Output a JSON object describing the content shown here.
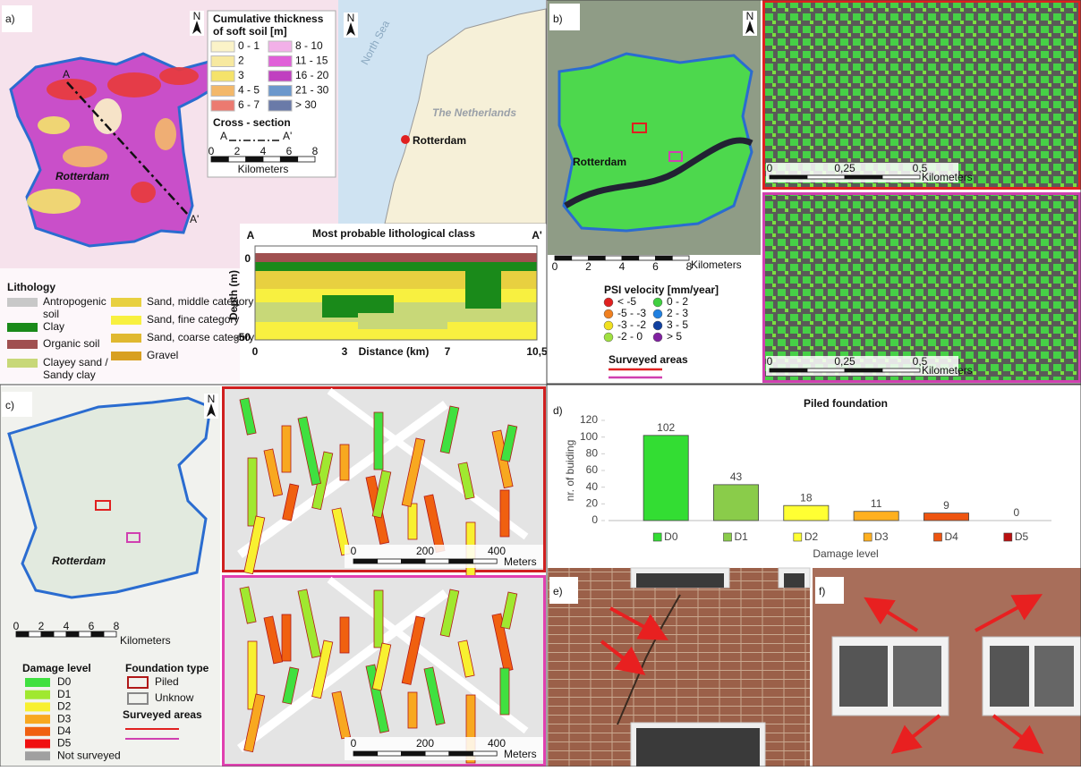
{
  "panel_a": {
    "label": "a)",
    "north": "N",
    "legend_title_1": "Cumulative thickness",
    "legend_title_2": "of soft soil [m]",
    "thickness_classes": [
      {
        "label": "0 - 1",
        "color": "#fbf3c8"
      },
      {
        "label": "2",
        "color": "#f7e9a0"
      },
      {
        "label": "3",
        "color": "#f5e36a"
      },
      {
        "label": "4 - 5",
        "color": "#f3b86a"
      },
      {
        "label": "6 - 7",
        "color": "#ec7a70"
      },
      {
        "label": "8 - 10",
        "color": "#f2b0e8"
      },
      {
        "label": "11 - 15",
        "color": "#e060d8"
      },
      {
        "label": "16 - 20",
        "color": "#c040c0"
      },
      {
        "label": "21 - 30",
        "color": "#6c98cc"
      },
      {
        "label": "> 30",
        "color": "#6a7aa8"
      }
    ],
    "cross_section_title": "Cross - section",
    "cross_section_from": "A",
    "cross_section_to": "A'",
    "scale_ticks": [
      0,
      2,
      4,
      6,
      8
    ],
    "scale_unit": "Kilometers",
    "city": "Rotterdam",
    "section_start": "A",
    "section_end": "A'",
    "inset": {
      "north": "N",
      "sea": "North Sea",
      "country": "The Netherlands",
      "city": "Rotterdam"
    },
    "profile": {
      "title": "Most probable lithological class",
      "start": "A",
      "end": "A'",
      "y_label": "Depth (m)",
      "y_ticks": [
        0,
        -50
      ],
      "x_label": "Distance (km)",
      "x_ticks": [
        "0",
        "3",
        "7",
        "10,5"
      ]
    },
    "lithology_title": "Lithology",
    "lithology": [
      {
        "lines": [
          "Antropogenic",
          "soil"
        ],
        "color": "#c8c8c8"
      },
      {
        "lines": [
          "Clay"
        ],
        "color": "#1a8a1a"
      },
      {
        "lines": [
          "Organic soil"
        ],
        "color": "#a05050"
      },
      {
        "lines": [
          "Clayey sand /",
          "Sandy clay"
        ],
        "color": "#c8d878"
      },
      {
        "lines": [
          "Sand, middle category"
        ],
        "color": "#e8d040"
      },
      {
        "lines": [
          "Sand, fine category"
        ],
        "color": "#f8f040"
      },
      {
        "lines": [
          "Sand, coarse category"
        ],
        "color": "#e0b830"
      },
      {
        "lines": [
          "Gravel"
        ],
        "color": "#d8a020"
      }
    ]
  },
  "panel_b": {
    "label": "b)",
    "north": "N",
    "city": "Rotterdam",
    "scale_ticks": [
      0,
      2,
      4,
      6,
      8
    ],
    "scale_unit": "Kilometers",
    "inset_scale_ticks": [
      "0",
      "0,25",
      "0,5"
    ],
    "inset_scale_unit": "Kilometers",
    "psi_title": "PSI velocity [mm/year]",
    "psi_classes": [
      {
        "label": "< -5",
        "color": "#e02020"
      },
      {
        "label": "-5 - -3",
        "color": "#f08020"
      },
      {
        "label": "-3 - -2",
        "color": "#f0e020"
      },
      {
        "label": "-2 - 0",
        "color": "#a0e040"
      },
      {
        "label": "0 - 2",
        "color": "#40d040"
      },
      {
        "label": "2 - 3",
        "color": "#2080e0"
      },
      {
        "label": "3 - 5",
        "color": "#1040a0"
      },
      {
        "label": "> 5",
        "color": "#8020a0"
      }
    ],
    "surveyed": "Surveyed areas"
  },
  "panel_c": {
    "label": "c)",
    "north": "N",
    "city": "Rotterdam",
    "scale_ticks": [
      0,
      2,
      4,
      6,
      8
    ],
    "scale_unit": "Kilometers",
    "inset_scale_ticks": [
      0,
      200,
      400
    ],
    "inset_scale_unit": "Meters",
    "damage_title": "Damage level",
    "damage_classes": [
      {
        "label": "D0",
        "color": "#40e040"
      },
      {
        "label": "D1",
        "color": "#a0e830"
      },
      {
        "label": "D2",
        "color": "#f8f030"
      },
      {
        "label": "D3",
        "color": "#f8a820"
      },
      {
        "label": "D4",
        "color": "#f06010"
      },
      {
        "label": "D5",
        "color": "#f01010"
      },
      {
        "label": "Not surveyed",
        "color": "#a0a0a0"
      }
    ],
    "foundation_title": "Foundation type",
    "foundation_types": [
      "Piled",
      "Unknow"
    ],
    "surveyed": "Surveyed areas"
  },
  "chart_data": {
    "type": "bar",
    "label": "d)",
    "title": "Piled foundation",
    "y_label": "nr. of buiding",
    "x_label": "Damage level",
    "categories": [
      "D0",
      "D1",
      "D2",
      "D3",
      "D4",
      "D5"
    ],
    "values": [
      102,
      43,
      18,
      11,
      9,
      0
    ],
    "colors": [
      "#33dd33",
      "#8acc4a",
      "#ffff33",
      "#ffb020",
      "#ee5511",
      "#bb1111"
    ],
    "ylim": [
      0,
      120
    ],
    "yticks": [
      0,
      20,
      40,
      60,
      80,
      100,
      120
    ],
    "grid": false
  },
  "panel_e": {
    "label": "e)"
  },
  "panel_f": {
    "label": "f)"
  }
}
